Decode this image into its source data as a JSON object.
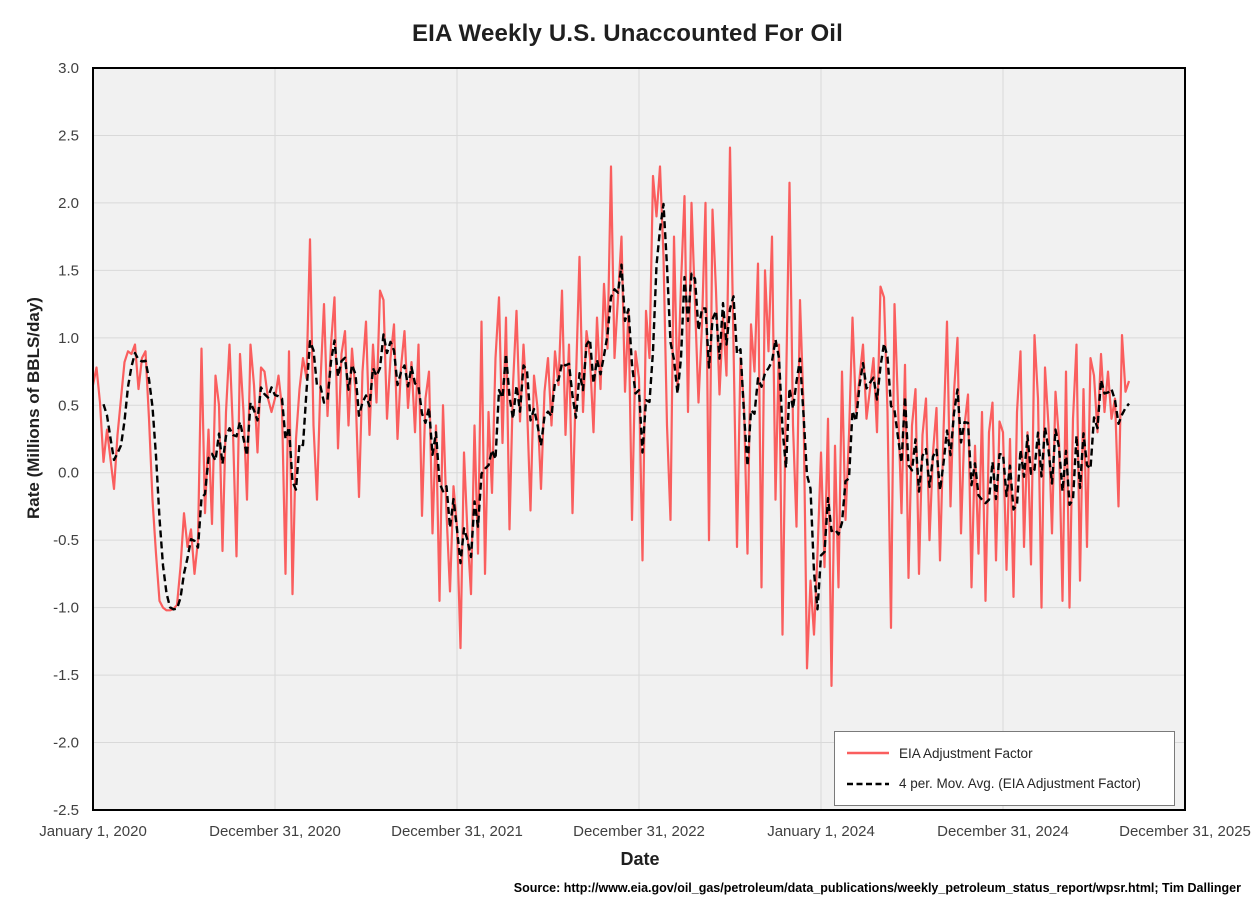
{
  "title": "EIA Weekly U.S. Unaccounted For Oil",
  "source_note": "Source: http://www.eia.gov/oil_gas/petroleum/data_publications/weekly_petroleum_status_report/wpsr.html; Tim Dallinger",
  "legend": {
    "items": [
      {
        "label": "EIA Adjustment Factor"
      },
      {
        "label": "4 per. Mov. Avg. (EIA Adjustment Factor)"
      }
    ]
  },
  "colors": {
    "series_red": "#FA5E5E",
    "ma_black": "#000000",
    "plot_bg": "#F1F1F1",
    "gridline": "#D9D9D9",
    "plot_border": "#000000",
    "tick_text": "#404040"
  },
  "chart_data": {
    "type": "line",
    "title": "EIA Weekly U.S. Unaccounted For Oil",
    "xlabel": "Date",
    "ylabel": "Rate (Millions of BBLS/day)",
    "ylim": [
      -2.5,
      3.0
    ],
    "y_tick_step": 0.5,
    "y_tick_labels": [
      "3.0",
      "2.5",
      "2.0",
      "1.5",
      "1.0",
      "0.5",
      "0.0",
      "-0.5",
      "-1.0",
      "-1.5",
      "-2.0",
      "-2.5"
    ],
    "x_tick_labels": [
      "January 1, 2020",
      "December 31, 2020",
      "December 31, 2021",
      "December 31, 2022",
      "January 1, 2024",
      "December 31, 2024",
      "December 31, 2025"
    ],
    "grid": true,
    "legend_position": "bottom-right",
    "frequency": "weekly",
    "series": [
      {
        "name": "EIA Adjustment Factor",
        "color": "#FA5E5E",
        "style": "solid",
        "values": [
          0.65,
          0.78,
          0.52,
          0.08,
          0.32,
          0.1,
          -0.12,
          0.28,
          0.55,
          0.82,
          0.9,
          0.88,
          0.95,
          0.62,
          0.85,
          0.9,
          0.4,
          -0.2,
          -0.6,
          -0.95,
          -1.0,
          -1.02,
          -1.02,
          -1.01,
          -0.98,
          -0.7,
          -0.3,
          -0.55,
          -0.42,
          -0.75,
          -0.5,
          0.92,
          -0.3,
          0.32,
          -0.38,
          0.72,
          0.5,
          -0.58,
          0.45,
          0.95,
          0.3,
          -0.62,
          0.88,
          0.45,
          -0.2,
          0.95,
          0.65,
          0.15,
          0.78,
          0.75,
          0.55,
          0.45,
          0.55,
          0.72,
          0.48,
          -0.75,
          0.9,
          -0.9,
          0.25,
          0.62,
          0.85,
          0.7,
          1.73,
          0.35,
          -0.2,
          0.68,
          1.25,
          0.42,
          0.95,
          1.3,
          0.18,
          0.88,
          1.05,
          0.35,
          0.92,
          0.6,
          -0.18,
          0.75,
          1.12,
          0.28,
          0.95,
          0.52,
          1.35,
          1.28,
          0.4,
          0.85,
          1.1,
          0.25,
          0.78,
          1.05,
          0.48,
          0.82,
          0.3,
          0.95,
          -0.32,
          0.55,
          0.75,
          -0.45,
          0.35,
          -0.95,
          0.5,
          -0.3,
          -0.88,
          -0.1,
          -0.4,
          -1.3,
          0.15,
          -0.45,
          -0.9,
          0.35,
          -0.6,
          1.12,
          -0.75,
          0.45,
          -0.15,
          0.85,
          1.3,
          0.22,
          1.15,
          -0.42,
          0.65,
          1.2,
          0.38,
          0.95,
          0.5,
          -0.28,
          0.72,
          0.48,
          -0.12,
          0.6,
          0.85,
          0.35,
          0.9,
          0.65,
          1.35,
          0.28,
          0.95,
          -0.3,
          0.7,
          1.6,
          0.45,
          1.05,
          0.85,
          0.3,
          1.15,
          0.62,
          1.4,
          0.92,
          2.27,
          0.85,
          1.3,
          1.75,
          0.6,
          1.2,
          -0.35,
          0.9,
          0.7,
          -0.65,
          1.2,
          0.85,
          2.2,
          1.9,
          2.27,
          1.6,
          0.35,
          -0.35,
          1.75,
          0.6,
          1.4,
          2.05,
          0.45,
          2.0,
          1.25,
          0.52,
          1.1,
          2.0,
          -0.5,
          1.95,
          1.35,
          0.58,
          1.15,
          0.72,
          2.41,
          0.95,
          -0.55,
          0.85,
          0.5,
          -0.6,
          1.1,
          0.75,
          1.55,
          -0.85,
          1.5,
          0.9,
          1.75,
          -0.2,
          0.95,
          -1.2,
          0.6,
          2.15,
          0.35,
          -0.4,
          1.28,
          0.5,
          -1.45,
          -0.8,
          -1.2,
          -0.6,
          0.15,
          -0.7,
          0.4,
          -1.58,
          0.2,
          -0.85,
          0.75,
          -0.35,
          0.28,
          1.15,
          0.45,
          0.7,
          0.95,
          0.4,
          0.62,
          0.85,
          0.3,
          1.38,
          1.3,
          0.45,
          -1.15,
          1.25,
          0.5,
          -0.3,
          0.8,
          -0.78,
          0.35,
          0.62,
          -0.75,
          0.28,
          0.55,
          -0.5,
          0.15,
          0.48,
          -0.65,
          0.3,
          1.12,
          -0.25,
          0.6,
          1.0,
          -0.45,
          0.35,
          0.58,
          -0.85,
          0.2,
          -0.6,
          0.45,
          -0.95,
          0.3,
          0.52,
          -0.65,
          0.38,
          0.3,
          -0.72,
          0.25,
          -0.92,
          0.45,
          0.9,
          -0.55,
          0.3,
          -0.68,
          1.02,
          0.55,
          -1.0,
          0.78,
          0.35,
          -0.45,
          0.6,
          0.25,
          -0.95,
          0.75,
          -1.0,
          0.4,
          0.95,
          -0.8,
          0.62,
          -0.55,
          0.85,
          0.72,
          0.3,
          0.88,
          0.45,
          0.75,
          0.4,
          0.55,
          -0.25,
          1.02,
          0.6,
          0.68
        ]
      },
      {
        "name": "4 per. Mov. Avg. (EIA Adjustment Factor)",
        "color": "#000000",
        "style": "dashed",
        "derived": "4-period trailing moving average of EIA Adjustment Factor"
      }
    ]
  }
}
